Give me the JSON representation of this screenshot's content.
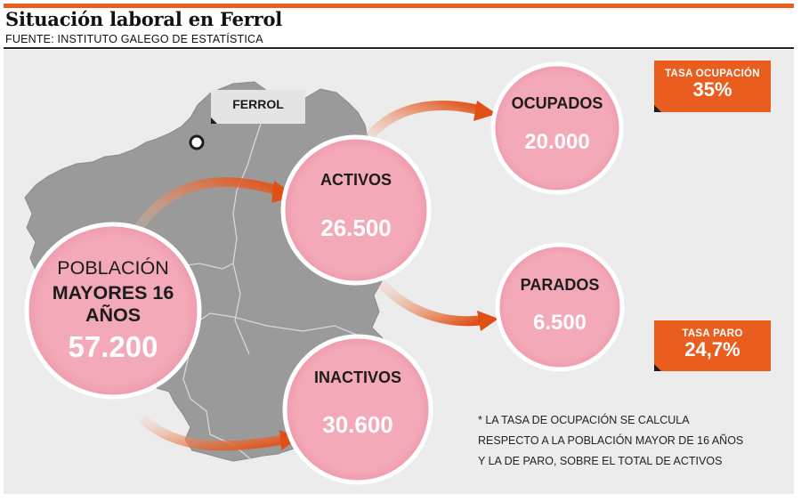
{
  "header": {
    "title": "Situación laboral en Ferrol",
    "source": "FUENTE: INSTITUTO GALEGO DE ESTATÍSTICA"
  },
  "map": {
    "city_label": "FERROL"
  },
  "nodes": {
    "poblacion": {
      "line1": "POBLACIÓN",
      "line2": "MAYORES 16",
      "line3": "AÑOS",
      "value": "57.200"
    },
    "activos": {
      "label": "ACTIVOS",
      "value": "26.500"
    },
    "inactivos": {
      "label": "INACTIVOS",
      "value": "30.600"
    },
    "ocupados": {
      "label": "OCUPADOS",
      "value": "20.000"
    },
    "parados": {
      "label": "PARADOS",
      "value": "6.500"
    }
  },
  "badges": {
    "ocupacion": {
      "label": "TASA OCUPACIÓN",
      "value": "35%"
    },
    "paro": {
      "label": "TASA PARO",
      "value": "24,7%"
    }
  },
  "footnote": {
    "line1": "* LA TASA DE OCUPACIÓN SE CALCULA",
    "line2": "RESPECTO A LA POBLACIÓN MAYOR DE 16 AÑOS",
    "line3": "Y LA DE PARO, SOBRE EL TOTAL DE ACTIVOS"
  },
  "colors": {
    "accent": "#e95e1e",
    "circle_fill": "#f3a9b8",
    "map_fill": "#9b9b9b",
    "panel_bg": "#ececec"
  }
}
